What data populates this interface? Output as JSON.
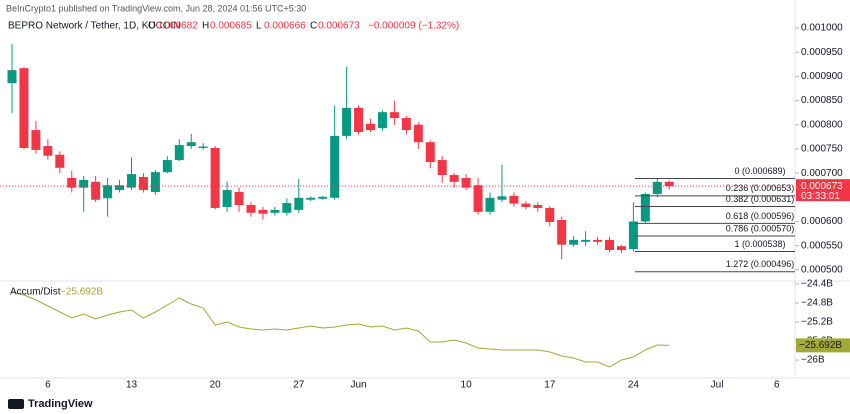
{
  "header": "BeInCrypto1 published on TradingView.com, Jun 28, 2024 01:56 UTC+5:30",
  "footer": "TradingView",
  "chart_data": [
    {
      "type": "candlestick",
      "title": "BEPRO Network / Tether, 1D, KUCOIN",
      "legend": {
        "open_label": "O",
        "open": "0.000682",
        "high_label": "H",
        "high": "0.000685",
        "low_label": "L",
        "low": "0.000666",
        "close_label": "C",
        "close": "0.000673",
        "change": "−0.000009 (−1.32%)"
      },
      "categories": [
        null,
        null,
        null,
        "6",
        null,
        null,
        null,
        null,
        null,
        null,
        "13",
        null,
        null,
        null,
        null,
        null,
        null,
        "20",
        null,
        null,
        null,
        null,
        null,
        null,
        "27",
        null,
        null,
        null,
        null,
        "Jun",
        null,
        null,
        null,
        null,
        null,
        null,
        null,
        null,
        "10",
        null,
        null,
        null,
        null,
        null,
        null,
        "17",
        null,
        null,
        null,
        null,
        null,
        null,
        "24",
        null,
        null,
        null,
        null,
        null,
        null,
        "Jul",
        null,
        null,
        null,
        null,
        "6"
      ],
      "open": [
        0.000886,
        0.000917,
        0.000789,
        0.000756,
        0.000738,
        0.00069,
        0.00067,
        0.000682,
        0.000648,
        0.000665,
        0.00067,
        0.000692,
        0.000661,
        0.000702,
        0.000727,
        0.000756,
        0.000752,
        0.000752,
        0.00063,
        0.000661,
        0.000634,
        0.000624,
        0.000618,
        0.000618,
        0.000624,
        0.000645,
        0.000647,
        0.000649,
        0.000777,
        0.000835,
        0.000802,
        0.000793,
        0.000826,
        0.000814,
        0.0008,
        0.000764,
        0.000727,
        0.000696,
        0.00069,
        0.000675,
        0.00062,
        0.000645,
        0.000653,
        0.000637,
        0.000634,
        0.000628,
        0.000603,
        0.000552,
        0.000558,
        0.000562,
        0.000562,
        0.000549,
        0.000543,
        0.0006,
        0.000657,
        0.000682,
        null,
        null,
        null,
        null,
        null,
        null,
        null,
        null,
        null
      ],
      "high": [
        0.000967,
        0.00092,
        0.000808,
        0.00077,
        0.000745,
        0.000705,
        0.000694,
        0.000694,
        0.00069,
        0.000686,
        0.000733,
        0.0007,
        0.000706,
        0.000735,
        0.00077,
        0.000781,
        0.000762,
        0.000756,
        0.000683,
        0.00067,
        0.00064,
        0.00063,
        0.00063,
        0.000648,
        0.000688,
        0.000652,
        0.000653,
        0.00084,
        0.00092,
        0.00084,
        0.000812,
        0.00083,
        0.00085,
        0.000818,
        0.000805,
        0.000768,
        0.000735,
        0.0007,
        0.000698,
        0.00069,
        0.00066,
        0.000717,
        0.00066,
        0.000642,
        0.00064,
        0.000632,
        0.00061,
        0.00057,
        0.00058,
        0.000568,
        0.000568,
        0.000552,
        0.00064,
        0.00066,
        0.000689,
        0.000685,
        null,
        null,
        null,
        null,
        null,
        null,
        null,
        null,
        null
      ],
      "low": [
        0.000824,
        0.000749,
        0.00074,
        0.000728,
        0.0007,
        0.00066,
        0.00062,
        0.00064,
        0.00061,
        0.00066,
        0.000665,
        0.00066,
        0.000655,
        0.0007,
        0.000725,
        0.00075,
        0.000748,
        0.000625,
        0.00062,
        0.00062,
        0.00061,
        0.000604,
        0.000612,
        0.000612,
        0.000618,
        0.000642,
        0.000645,
        0.000645,
        0.00077,
        0.00078,
        0.000785,
        0.000788,
        0.0008,
        0.00078,
        0.00075,
        0.00071,
        0.00068,
        0.00067,
        0.000665,
        0.000614,
        0.000614,
        0.00064,
        0.00063,
        0.000625,
        0.00062,
        0.00059,
        0.000522,
        0.000548,
        0.00055,
        0.000552,
        0.000536,
        0.000535,
        0.000538,
        0.000596,
        0.00065,
        0.000666,
        null,
        null,
        null,
        null,
        null,
        null,
        null,
        null,
        null
      ],
      "close": [
        0.000913,
        0.000752,
        0.000748,
        0.000736,
        0.000711,
        0.00067,
        0.000686,
        0.000645,
        0.000675,
        0.000675,
        0.000698,
        0.000665,
        0.000702,
        0.000727,
        0.000758,
        0.000764,
        0.000755,
        0.000628,
        0.000665,
        0.000634,
        0.000618,
        0.000616,
        0.000624,
        0.000638,
        0.000649,
        0.000649,
        0.000651,
        0.000777,
        0.000835,
        0.000785,
        0.000789,
        0.000826,
        0.000814,
        0.000789,
        0.000764,
        0.000723,
        0.000696,
        0.000682,
        0.00067,
        0.00062,
        0.000649,
        0.000652,
        0.000637,
        0.00063,
        0.000628,
        0.000599,
        0.000552,
        0.000562,
        0.000562,
        0.000558,
        0.000541,
        0.000541,
        0.0006,
        0.000657,
        0.000682,
        0.000673,
        null,
        null,
        null,
        null,
        null,
        null,
        null,
        null,
        null
      ],
      "up_color": "#089981",
      "down_color": "#f23645",
      "ylim": [
        0.000479,
        0.001058
      ],
      "yticks": [
        {
          "value": 0.0005,
          "label": "0.000500"
        },
        {
          "value": 0.00055,
          "label": "0.000550"
        },
        {
          "value": 0.0006,
          "label": "0.000600"
        },
        {
          "value": 0.00065,
          "label": "0.000650"
        },
        {
          "value": 0.0007,
          "label": "0.000700"
        },
        {
          "value": 0.00075,
          "label": "0.000750"
        },
        {
          "value": 0.0008,
          "label": "0.000800"
        },
        {
          "value": 0.00085,
          "label": "0.000850"
        },
        {
          "value": 0.0009,
          "label": "0.000900"
        },
        {
          "value": 0.00095,
          "label": "0.000950"
        },
        {
          "value": 0.001,
          "label": "0.001000"
        }
      ],
      "fib_color": "#434651",
      "fib_levels": [
        {
          "value": 0.000689,
          "label": "0 (0.000689)"
        },
        {
          "value": 0.000653,
          "label": "0.236 (0.000653)"
        },
        {
          "value": 0.000631,
          "label": "0.382 (0.000631)"
        },
        {
          "value": 0.000596,
          "label": "0.618 (0.000596)"
        },
        {
          "value": 0.00057,
          "label": "0.786 (0.000570)"
        },
        {
          "value": 0.000538,
          "label": "1 (0.000538)"
        },
        {
          "value": 0.000496,
          "label": "1.272 (0.000496)"
        }
      ],
      "last_price": {
        "value": 0.000673,
        "label": "0.000673"
      },
      "countdown": "03:33:01"
    },
    {
      "type": "line",
      "series": [
        {
          "name": "Accum/Dist",
          "color": "#a3a937",
          "values": [
            -24.568,
            -24.632,
            -24.737,
            -24.863,
            -24.989,
            -25.116,
            -25.032,
            -25.137,
            -25.053,
            -24.989,
            -24.947,
            -25.116,
            -24.989,
            -24.842,
            -24.695,
            -24.821,
            -24.905,
            -25.263,
            -25.2,
            -25.305,
            -25.347,
            -25.368,
            -25.347,
            -25.368,
            -25.326,
            -25.284,
            -25.326,
            -25.305,
            -25.263,
            -25.242,
            -25.305,
            -25.284,
            -25.368,
            -25.326,
            -25.389,
            -25.621,
            -25.621,
            -25.579,
            -25.642,
            -25.747,
            -25.768,
            -25.789,
            -25.789,
            -25.789,
            -25.789,
            -25.832,
            -25.916,
            -25.958,
            -26.042,
            -26.042,
            -26.147,
            -26.0,
            -25.937,
            -25.789,
            -25.684,
            -25.692,
            null,
            null,
            null,
            null,
            null,
            null,
            null,
            null,
            null
          ]
        }
      ],
      "ylim": [
        -26.42,
        -24.38
      ],
      "yticks": [
        {
          "value": -24.4,
          "label": "−24.4B"
        },
        {
          "value": -24.8,
          "label": "−24.8B"
        },
        {
          "value": -25.2,
          "label": "−25.2B"
        },
        {
          "value": -25.6,
          "label": "−25.6B"
        },
        {
          "value": -26,
          "label": "−26B"
        }
      ],
      "last_value": {
        "value": -25.692,
        "label": "−25.692B"
      }
    }
  ]
}
